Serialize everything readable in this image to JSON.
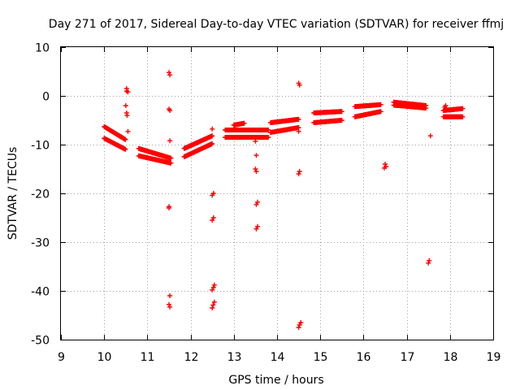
{
  "chart_data": {
    "type": "scatter",
    "title": "Day 271 of 2017, Sidereal Day-to-day VTEC variation (SDTVAR) for receiver ffmj",
    "xlabel": "GPS time / hours",
    "ylabel": "SDTVAR / TECUs",
    "xlim": [
      9,
      19
    ],
    "ylim": [
      -50,
      10
    ],
    "xticks": [
      9,
      10,
      11,
      12,
      13,
      14,
      15,
      16,
      17,
      18,
      19
    ],
    "yticks": [
      -50,
      -40,
      -30,
      -20,
      -10,
      0,
      10
    ],
    "grid": true,
    "marker": "+",
    "marker_color": "#ff0000",
    "segments": [
      {
        "x0": 10.0,
        "x1": 10.5,
        "ys": [
          -6.3,
          -9.0
        ]
      },
      {
        "x0": 10.0,
        "x1": 10.5,
        "ys": [
          -8.7,
          -11.0
        ]
      },
      {
        "x0": 10.8,
        "x1": 11.55,
        "ys": [
          -10.8,
          -12.8
        ]
      },
      {
        "x0": 10.8,
        "x1": 11.55,
        "ys": [
          -12.3,
          -13.8
        ]
      },
      {
        "x0": 11.85,
        "x1": 12.5,
        "ys": [
          -10.8,
          -8.2
        ]
      },
      {
        "x0": 11.85,
        "x1": 12.5,
        "ys": [
          -12.5,
          -9.8
        ]
      },
      {
        "x0": 12.8,
        "x1": 13.8,
        "ys": [
          -7.0,
          -7.0
        ]
      },
      {
        "x0": 12.8,
        "x1": 13.8,
        "ys": [
          -8.5,
          -8.5
        ]
      },
      {
        "x0": 13.0,
        "x1": 13.25,
        "ys": [
          -6.0,
          -5.6
        ]
      },
      {
        "x0": 13.85,
        "x1": 14.5,
        "ys": [
          -5.5,
          -4.8
        ]
      },
      {
        "x0": 13.85,
        "x1": 14.5,
        "ys": [
          -7.5,
          -6.5
        ]
      },
      {
        "x0": 14.85,
        "x1": 15.5,
        "ys": [
          -3.5,
          -3.2
        ]
      },
      {
        "x0": 14.85,
        "x1": 15.5,
        "ys": [
          -5.5,
          -5.0
        ]
      },
      {
        "x0": 15.8,
        "x1": 16.4,
        "ys": [
          -2.2,
          -1.8
        ]
      },
      {
        "x0": 15.8,
        "x1": 16.4,
        "ys": [
          -4.3,
          -3.2
        ]
      },
      {
        "x0": 16.7,
        "x1": 17.45,
        "ys": [
          -1.3,
          -2.0
        ]
      },
      {
        "x0": 16.7,
        "x1": 17.45,
        "ys": [
          -1.9,
          -2.5
        ]
      },
      {
        "x0": 17.85,
        "x1": 18.3,
        "ys": [
          -3.0,
          -2.6
        ]
      },
      {
        "x0": 17.85,
        "x1": 18.3,
        "ys": [
          -4.3,
          -4.3
        ]
      }
    ],
    "points": [
      {
        "x": 10.52,
        "y": 1.5
      },
      {
        "x": 10.52,
        "y": 1.0
      },
      {
        "x": 10.55,
        "y": 0.8
      },
      {
        "x": 10.5,
        "y": -2.0
      },
      {
        "x": 10.52,
        "y": -3.5
      },
      {
        "x": 10.53,
        "y": -4.0
      },
      {
        "x": 10.55,
        "y": -7.3
      },
      {
        "x": 11.5,
        "y": 4.8
      },
      {
        "x": 11.52,
        "y": 4.3
      },
      {
        "x": 11.5,
        "y": -2.7
      },
      {
        "x": 11.52,
        "y": -3.0
      },
      {
        "x": 11.52,
        "y": -9.2
      },
      {
        "x": 11.5,
        "y": -22.7
      },
      {
        "x": 11.5,
        "y": -23.0
      },
      {
        "x": 11.52,
        "y": -41.0
      },
      {
        "x": 11.5,
        "y": -42.8
      },
      {
        "x": 11.52,
        "y": -43.3
      },
      {
        "x": 12.5,
        "y": -6.8
      },
      {
        "x": 12.53,
        "y": -20.0
      },
      {
        "x": 12.5,
        "y": -20.4
      },
      {
        "x": 12.53,
        "y": -25.0
      },
      {
        "x": 12.5,
        "y": -25.5
      },
      {
        "x": 12.55,
        "y": -38.8
      },
      {
        "x": 12.53,
        "y": -39.3
      },
      {
        "x": 12.5,
        "y": -39.8
      },
      {
        "x": 12.55,
        "y": -42.3
      },
      {
        "x": 12.52,
        "y": -42.9
      },
      {
        "x": 12.5,
        "y": -43.5
      },
      {
        "x": 13.5,
        "y": -9.3
      },
      {
        "x": 13.52,
        "y": -12.2
      },
      {
        "x": 13.5,
        "y": -15.0
      },
      {
        "x": 13.52,
        "y": -15.5
      },
      {
        "x": 13.55,
        "y": -21.8
      },
      {
        "x": 13.52,
        "y": -22.3
      },
      {
        "x": 13.55,
        "y": -26.8
      },
      {
        "x": 13.52,
        "y": -27.3
      },
      {
        "x": 14.5,
        "y": 2.6
      },
      {
        "x": 14.52,
        "y": 2.2
      },
      {
        "x": 14.5,
        "y": -7.3
      },
      {
        "x": 14.52,
        "y": -15.5
      },
      {
        "x": 14.5,
        "y": -16.0
      },
      {
        "x": 14.55,
        "y": -46.5
      },
      {
        "x": 14.52,
        "y": -47.0
      },
      {
        "x": 14.5,
        "y": -47.5
      },
      {
        "x": 16.5,
        "y": -14.0
      },
      {
        "x": 16.52,
        "y": -14.5
      },
      {
        "x": 16.48,
        "y": -14.8
      },
      {
        "x": 17.55,
        "y": -8.2
      },
      {
        "x": 17.52,
        "y": -33.8
      },
      {
        "x": 17.5,
        "y": -34.3
      },
      {
        "x": 17.9,
        "y": -2.0
      },
      {
        "x": 17.88,
        "y": -2.3
      }
    ]
  }
}
